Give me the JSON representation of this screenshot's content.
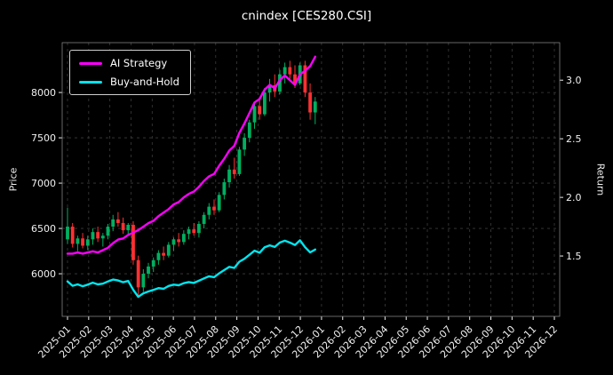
{
  "title": "cnindex [CES280.CSI]",
  "colors": {
    "background": "#000000",
    "text": "#f0f0f0",
    "grid": "#3c3c3c",
    "spine": "#808080",
    "candle_up": "#00b060",
    "candle_down": "#fe3032",
    "ai_strategy": "#ff00ff",
    "buy_and_hold": "#00e5ee",
    "legend_border": "#cfcfcf"
  },
  "chart_data": {
    "type": "candlestick+line",
    "title": "cnindex [CES280.CSI]",
    "grid": "dashed",
    "legend_position": "upper left",
    "left_axis": {
      "label": "Price",
      "ticks": [
        6000,
        6500,
        7000,
        7500,
        8000
      ],
      "lim": [
        5530,
        8550
      ]
    },
    "right_axis": {
      "label": "Return",
      "ticks": [
        "1.5",
        "2.0",
        "2.5",
        "3.0"
      ],
      "tick_values": [
        1.5,
        2.0,
        2.5,
        3.0
      ],
      "lim": [
        0.985,
        3.32
      ]
    },
    "x_axis": {
      "tick_labels": [
        "2025-01",
        "2025-02",
        "2025-03",
        "2025-04",
        "2025-05",
        "2025-06",
        "2025-07",
        "2025-08",
        "2025-09",
        "2025-10",
        "2025-11",
        "2025-12",
        "2026-01",
        "2026-02",
        "2026-03",
        "2026-04",
        "2026-05",
        "2026-06",
        "2026-07",
        "2026-08",
        "2026-09",
        "2026-10",
        "2026-11",
        "2026-12"
      ]
    },
    "candles": {
      "axis": "left",
      "t_start": 0,
      "t_end": 11.7,
      "ohlc": [
        [
          6380,
          6730,
          6330,
          6520
        ],
        [
          6520,
          6560,
          6290,
          6330
        ],
        [
          6330,
          6420,
          6250,
          6390
        ],
        [
          6390,
          6450,
          6280,
          6310
        ],
        [
          6310,
          6420,
          6260,
          6380
        ],
        [
          6380,
          6500,
          6320,
          6460
        ],
        [
          6460,
          6520,
          6350,
          6390
        ],
        [
          6390,
          6450,
          6300,
          6420
        ],
        [
          6420,
          6550,
          6380,
          6520
        ],
        [
          6520,
          6650,
          6470,
          6600
        ],
        [
          6600,
          6680,
          6520,
          6560
        ],
        [
          6560,
          6620,
          6440,
          6480
        ],
        [
          6480,
          6560,
          6420,
          6540
        ],
        [
          6540,
          6580,
          6100,
          6150
        ],
        [
          6150,
          6200,
          5750,
          5850
        ],
        [
          5850,
          6050,
          5800,
          6000
        ],
        [
          6000,
          6120,
          5950,
          6080
        ],
        [
          6080,
          6180,
          6020,
          6150
        ],
        [
          6150,
          6260,
          6100,
          6230
        ],
        [
          6230,
          6300,
          6150,
          6200
        ],
        [
          6200,
          6350,
          6180,
          6320
        ],
        [
          6320,
          6400,
          6250,
          6380
        ],
        [
          6380,
          6450,
          6300,
          6350
        ],
        [
          6350,
          6480,
          6320,
          6440
        ],
        [
          6440,
          6520,
          6380,
          6490
        ],
        [
          6490,
          6560,
          6420,
          6450
        ],
        [
          6450,
          6580,
          6400,
          6550
        ],
        [
          6550,
          6680,
          6500,
          6650
        ],
        [
          6650,
          6780,
          6600,
          6740
        ],
        [
          6740,
          6820,
          6650,
          6700
        ],
        [
          6700,
          6900,
          6680,
          6870
        ],
        [
          6870,
          7050,
          6820,
          7010
        ],
        [
          7010,
          7200,
          6950,
          7150
        ],
        [
          7150,
          7280,
          7050,
          7100
        ],
        [
          7100,
          7400,
          7080,
          7370
        ],
        [
          7370,
          7550,
          7300,
          7500
        ],
        [
          7500,
          7700,
          7450,
          7670
        ],
        [
          7670,
          7900,
          7600,
          7850
        ],
        [
          7850,
          7950,
          7700,
          7760
        ],
        [
          7760,
          8050,
          7740,
          8000
        ],
        [
          8000,
          8150,
          7900,
          8080
        ],
        [
          8080,
          8200,
          7950,
          8010
        ],
        [
          8010,
          8250,
          7980,
          8200
        ],
        [
          8200,
          8330,
          8100,
          8280
        ],
        [
          8280,
          8350,
          8150,
          8200
        ],
        [
          8200,
          8300,
          8050,
          8100
        ],
        [
          8100,
          8330,
          8080,
          8300
        ],
        [
          8300,
          8350,
          7950,
          8000
        ],
        [
          8000,
          8100,
          7700,
          7780
        ],
        [
          7780,
          7950,
          7650,
          7900
        ]
      ]
    },
    "series": [
      {
        "name": "AI Strategy",
        "axis": "right",
        "color_key": "ai_strategy",
        "values": [
          1.52,
          1.52,
          1.53,
          1.52,
          1.53,
          1.54,
          1.53,
          1.55,
          1.57,
          1.61,
          1.64,
          1.65,
          1.68,
          1.7,
          1.72,
          1.75,
          1.78,
          1.8,
          1.84,
          1.87,
          1.9,
          1.94,
          1.96,
          2.0,
          2.03,
          2.05,
          2.09,
          2.14,
          2.18,
          2.2,
          2.27,
          2.33,
          2.4,
          2.44,
          2.55,
          2.63,
          2.72,
          2.81,
          2.84,
          2.92,
          2.96,
          2.93,
          3.0,
          3.04,
          3.0,
          2.96,
          3.05,
          3.08,
          3.12,
          3.2
        ]
      },
      {
        "name": "Buy-and-Hold",
        "axis": "right",
        "color_key": "buy_and_hold",
        "values": [
          1.283,
          1.246,
          1.258,
          1.242,
          1.256,
          1.272,
          1.258,
          1.264,
          1.283,
          1.299,
          1.291,
          1.276,
          1.287,
          1.211,
          1.152,
          1.181,
          1.197,
          1.211,
          1.226,
          1.22,
          1.244,
          1.256,
          1.25,
          1.268,
          1.278,
          1.27,
          1.289,
          1.309,
          1.327,
          1.319,
          1.352,
          1.38,
          1.407,
          1.398,
          1.451,
          1.476,
          1.51,
          1.545,
          1.528,
          1.575,
          1.591,
          1.577,
          1.614,
          1.63,
          1.614,
          1.594,
          1.634,
          1.575,
          1.531,
          1.555
        ]
      }
    ]
  }
}
